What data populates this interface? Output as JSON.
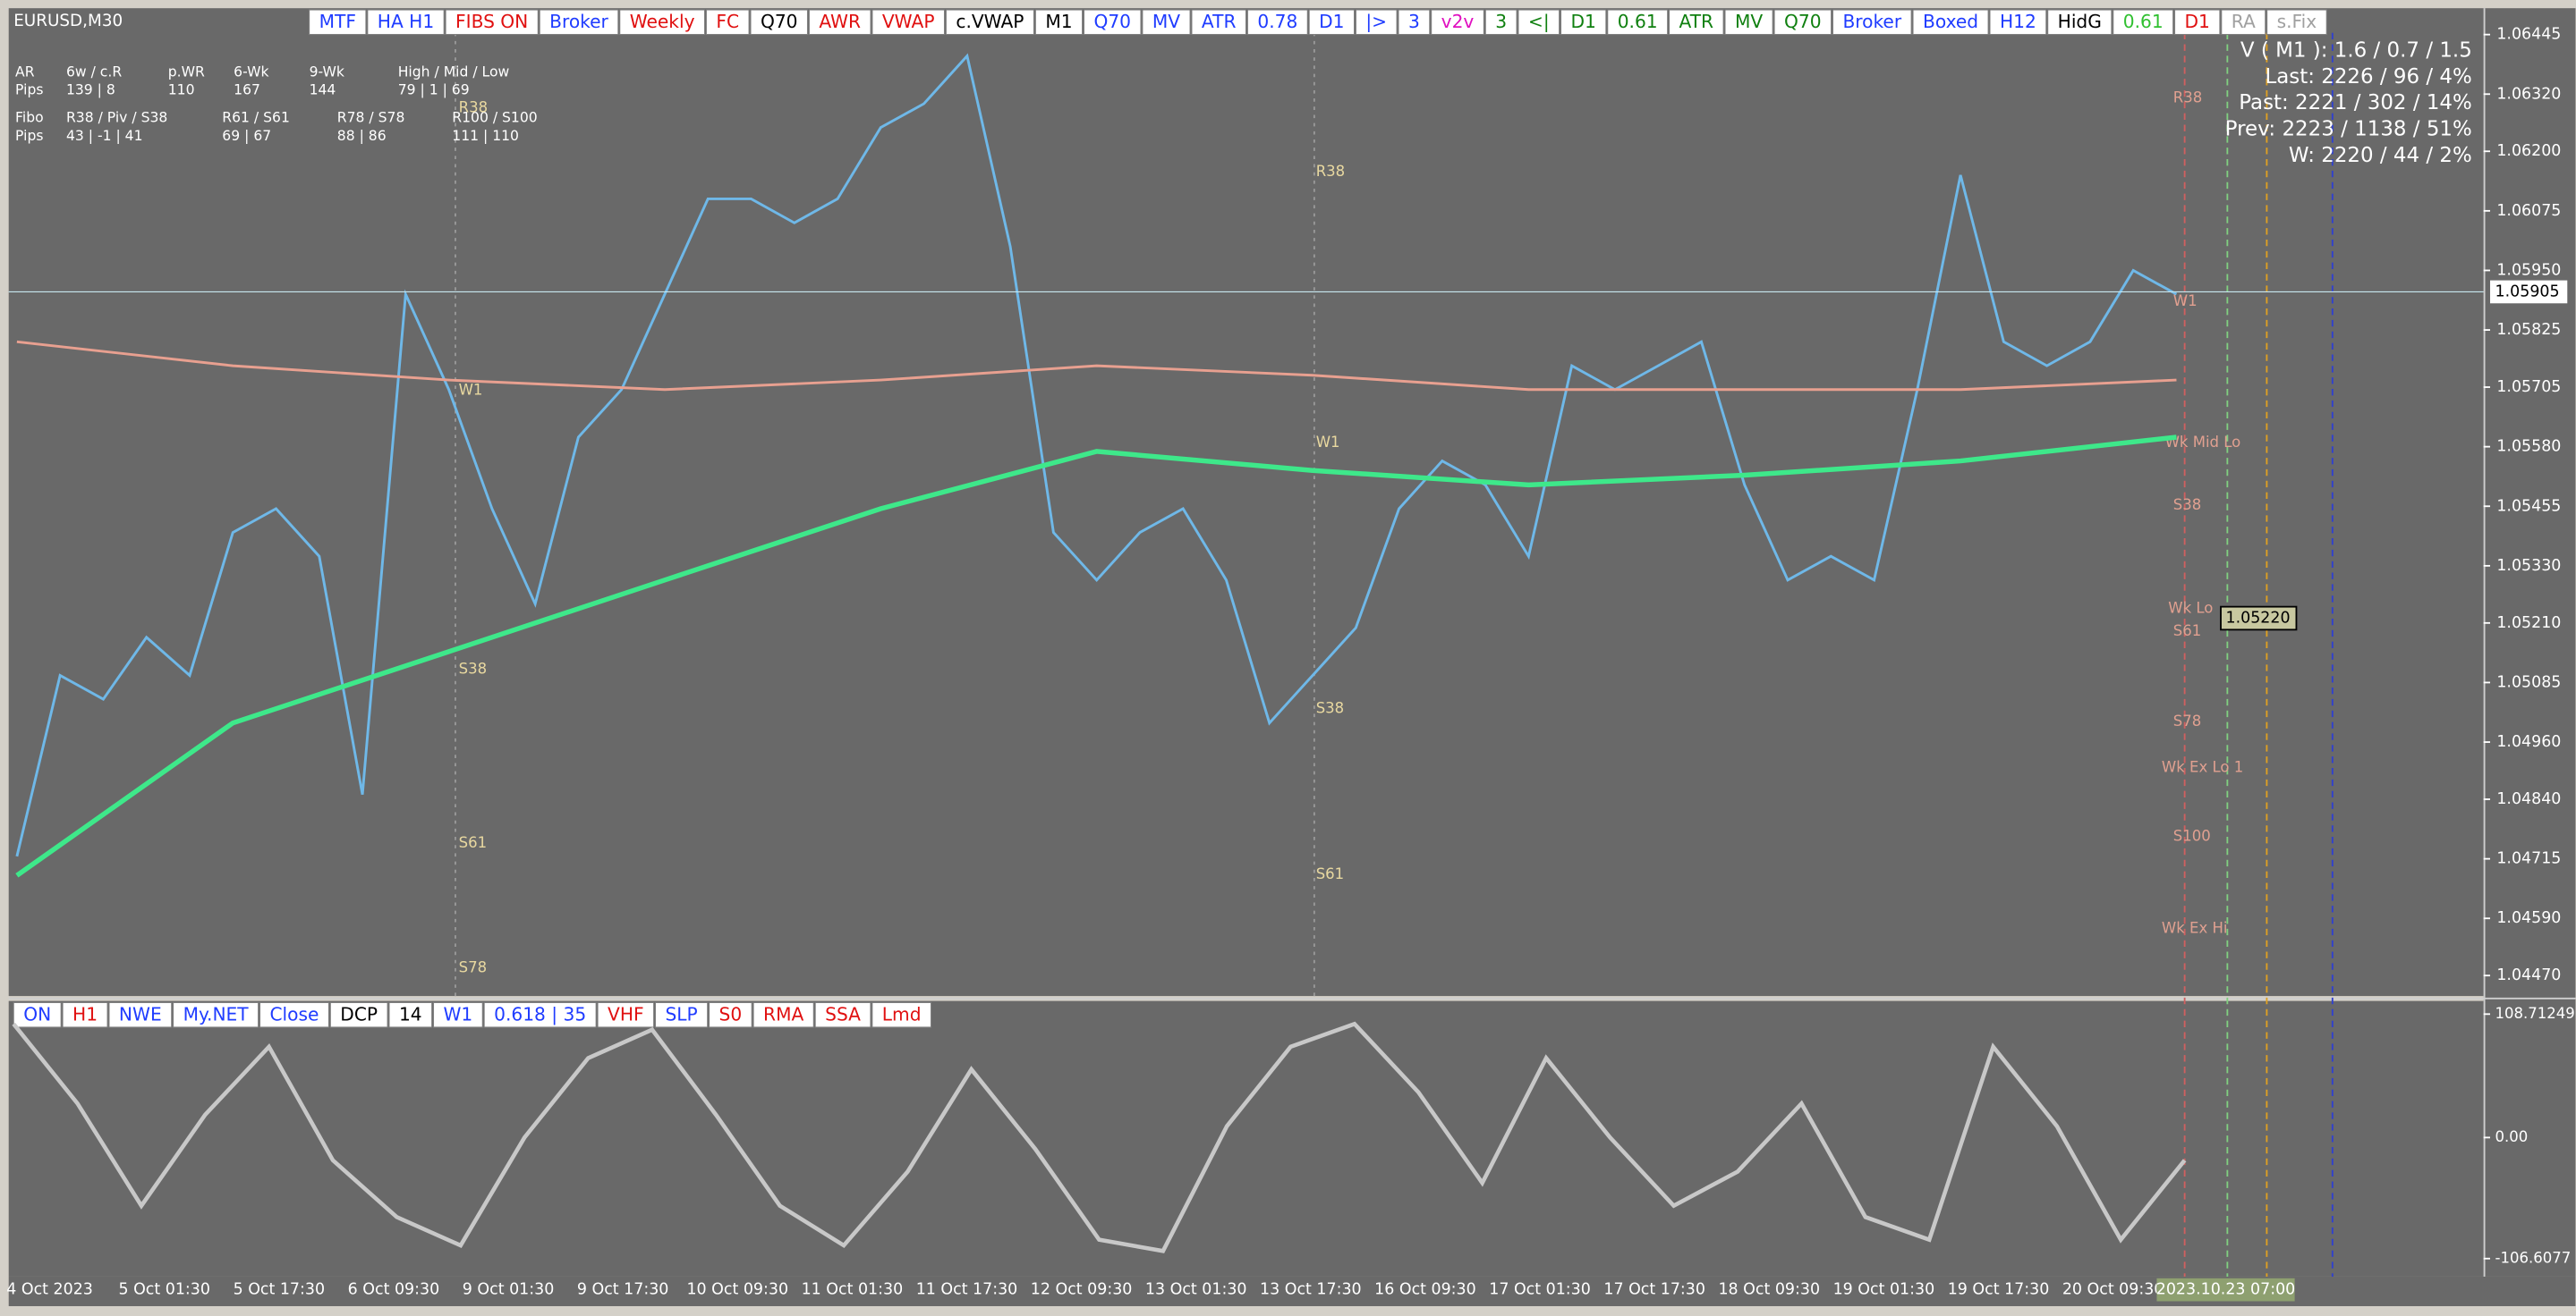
{
  "symbol": "EURUSD,M30",
  "toolbar": [
    {
      "label": "MTF",
      "color": "#1f3cff"
    },
    {
      "label": "HA H1",
      "color": "#1f3cff"
    },
    {
      "label": "FIBS ON",
      "color": "#e01010"
    },
    {
      "label": "Broker",
      "color": "#1f3cff"
    },
    {
      "label": "Weekly",
      "color": "#e01010"
    },
    {
      "label": "FC",
      "color": "#e01010"
    },
    {
      "label": "Q70",
      "color": "#000000"
    },
    {
      "label": "AWR",
      "color": "#e01010"
    },
    {
      "label": "VWAP",
      "color": "#e01010"
    },
    {
      "label": "c.VWAP",
      "color": "#000000"
    },
    {
      "label": "M1",
      "color": "#000000"
    },
    {
      "label": "Q70",
      "color": "#1f3cff"
    },
    {
      "label": "MV",
      "color": "#1f3cff"
    },
    {
      "label": "ATR",
      "color": "#1f3cff"
    },
    {
      "label": "0.78",
      "color": "#1f3cff"
    },
    {
      "label": "D1",
      "color": "#1f3cff"
    },
    {
      "label": "|>",
      "color": "#1f3cff"
    },
    {
      "label": "3",
      "color": "#1f3cff"
    },
    {
      "label": "v2v",
      "color": "#e010c0"
    },
    {
      "label": "3",
      "color": "#108010"
    },
    {
      "label": "<|",
      "color": "#108010"
    },
    {
      "label": "D1",
      "color": "#108010"
    },
    {
      "label": "0.61",
      "color": "#108010"
    },
    {
      "label": "ATR",
      "color": "#108010"
    },
    {
      "label": "MV",
      "color": "#108010"
    },
    {
      "label": "Q70",
      "color": "#108010"
    },
    {
      "label": "Broker",
      "color": "#1f3cff"
    },
    {
      "label": "Boxed",
      "color": "#1f3cff"
    },
    {
      "label": "H12",
      "color": "#1f3cff"
    },
    {
      "label": "HidG",
      "color": "#000000"
    },
    {
      "label": "0.61",
      "color": "#30c030"
    },
    {
      "label": "D1",
      "color": "#e01010"
    },
    {
      "label": "RA",
      "color": "#a0a0a0"
    },
    {
      "label": "s.Fix",
      "color": "#a0a0a0"
    }
  ],
  "info_table": {
    "rows": [
      [
        "AR",
        "6w / c.R",
        "p.WR",
        "6-Wk",
        "9-Wk",
        "High / Mid / Low"
      ],
      [
        "Pips",
        "139 | 8",
        "110",
        "167",
        "144",
        "79 | 1 | 69"
      ],
      [
        "Fibo",
        "R38 / Piv / S38",
        "R61 / S61",
        "R78 / S78",
        "R100 / S100"
      ],
      [
        "Pips",
        "43 | -1 | 41",
        "69 | 67",
        "88 | 86",
        "111 | 110"
      ]
    ]
  },
  "stats": [
    "V ( M1 ): 1.6 / 0.7 / 1.5",
    "Last: 2226 / 96 / 4%",
    "Past: 2221 / 302 / 14%",
    "Prev: 2223 / 1138 / 51%",
    "W: 2220 / 44 / 2%"
  ],
  "level_labels": [
    "R38",
    "W1",
    "S38",
    "S61",
    "S78",
    "R38",
    "W1",
    "S38",
    "S61",
    "R38",
    "Wk Mid Lo",
    "S38",
    "Wk Lo",
    "S61",
    "S78",
    "Wk Ex Lo 1",
    "S100",
    "Wk Ex Hi",
    "W1"
  ],
  "chart_data": {
    "type": "line",
    "ylim": [
      1.04427,
      1.0649
    ],
    "yticks": [
      1.06445,
      {
        "value": 1.0632,
        "label": "1.06320"
      },
      {
        "value": 1.062,
        "label": "1.06200"
      },
      1.06075,
      {
        "value": 1.0595,
        "label": "1.05950"
      },
      1.05825,
      1.05705,
      {
        "value": 1.0558,
        "label": "1.05580"
      },
      1.05455,
      {
        "value": 1.0533,
        "label": "1.05330"
      },
      {
        "value": 1.0521,
        "label": "1.05210"
      },
      1.05085,
      {
        "value": 1.0496,
        "label": "1.04960"
      },
      {
        "value": 1.0484,
        "label": "1.04840"
      },
      1.04715,
      {
        "value": 1.0459,
        "label": "1.04590"
      },
      {
        "value": 1.0447,
        "label": "1.04470"
      }
    ],
    "current_price": {
      "value": 1.05905,
      "label": "1.05905"
    },
    "marker_price": {
      "value": 1.0522,
      "label": "1.05220"
    },
    "series": [
      {
        "name": "Price",
        "color": "#6fb8e8",
        "values": [
          1.0472,
          1.051,
          1.0505,
          1.0518,
          1.051,
          1.054,
          1.0545,
          1.0535,
          1.0485,
          1.059,
          1.057,
          1.0545,
          1.0525,
          1.056,
          1.057,
          1.059,
          1.061,
          1.061,
          1.0605,
          1.061,
          1.0625,
          1.063,
          1.064,
          1.06,
          1.054,
          1.053,
          1.054,
          1.0545,
          1.053,
          1.05,
          1.051,
          1.052,
          1.0545,
          1.0555,
          1.055,
          1.0535,
          1.0575,
          1.057,
          1.0575,
          1.058,
          1.055,
          1.053,
          1.0535,
          1.053,
          1.057,
          1.0615,
          1.058,
          1.0575,
          1.058,
          1.0595,
          1.059
        ]
      },
      {
        "name": "MA Fast",
        "color": "#3ee88a",
        "values": [
          1.0468,
          1.05,
          1.0515,
          1.053,
          1.0545,
          1.0557,
          1.0553,
          1.055,
          1.0552,
          1.0555,
          1.056
        ]
      },
      {
        "name": "MA Slow",
        "color": "#e8a090",
        "values": [
          1.058,
          1.0575,
          1.0572,
          1.057,
          1.0572,
          1.0575,
          1.0573,
          1.057,
          1.057,
          1.057,
          1.0572
        ]
      }
    ]
  },
  "oscillator": {
    "type": "line",
    "ylim": [
      -122.5,
      120.3
    ],
    "yticks": [
      108.71249,
      {
        "value": 0,
        "label": "0.00"
      },
      -106.6077
    ],
    "color": "#c8c8c8",
    "values": [
      100,
      30,
      -60,
      20,
      80,
      -20,
      -70,
      -95,
      0,
      70,
      95,
      20,
      -60,
      -95,
      -30,
      60,
      -10,
      -90,
      -100,
      10,
      80,
      100,
      40,
      -40,
      70,
      0,
      -60,
      -30,
      30,
      -70,
      -90,
      80,
      10,
      -90,
      -20
    ]
  },
  "lower_toolbar": [
    {
      "label": "ON",
      "color": "#1f3cff"
    },
    {
      "label": "H1",
      "color": "#e01010"
    },
    {
      "label": "NWE",
      "color": "#1f3cff"
    },
    {
      "label": "My.NET",
      "color": "#1f3cff"
    },
    {
      "label": "Close",
      "color": "#1f3cff"
    },
    {
      "label": "DCP",
      "color": "#000000"
    },
    {
      "label": "14",
      "color": "#000000"
    },
    {
      "label": "W1",
      "color": "#1f3cff"
    },
    {
      "label": "0.618 | 35",
      "color": "#1f3cff"
    },
    {
      "label": "VHF",
      "color": "#e01010"
    },
    {
      "label": "SLP",
      "color": "#1f3cff"
    },
    {
      "label": "S0",
      "color": "#e01010"
    },
    {
      "label": "RMA",
      "color": "#e01010"
    },
    {
      "label": "SSA",
      "color": "#e01010"
    },
    {
      "label": "Lmd",
      "color": "#e01010"
    }
  ],
  "time_axis": [
    "4 Oct 2023",
    "5 Oct 01:30",
    "5 Oct 17:30",
    "6 Oct 09:30",
    "9 Oct 01:30",
    "9 Oct 17:30",
    "10 Oct 09:30",
    "11 Oct 01:30",
    "11 Oct 17:30",
    "12 Oct 09:30",
    "13 Oct 01:30",
    "13 Oct 17:30",
    "16 Oct 09:30",
    "17 Oct 01:30",
    "17 Oct 17:30",
    "18 Oct 09:30",
    "19 Oct 01:30",
    "19 Oct 17:30",
    "20 Oct 09:30"
  ],
  "time_cursor": "2023.10.23 07:00"
}
